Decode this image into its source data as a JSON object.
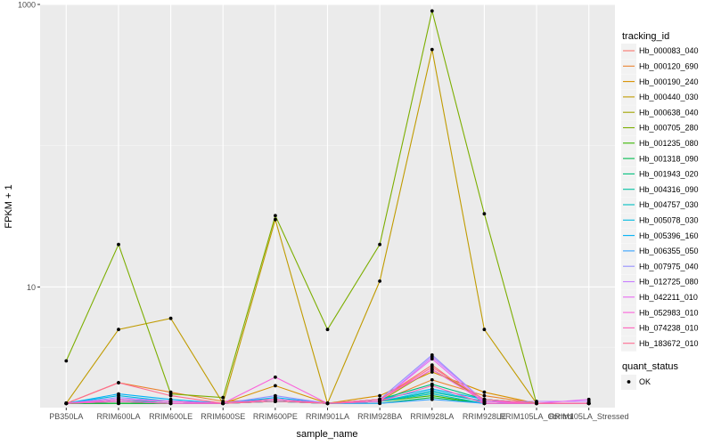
{
  "chart_data": {
    "type": "line",
    "title": "",
    "xlabel": "sample_name",
    "ylabel": "FPKM + 1",
    "y_scale": "log10",
    "ylim": [
      1.4,
      1000
    ],
    "y_ticks": [
      {
        "value": 1000,
        "label": "1000"
      },
      {
        "value": 10,
        "label": "10"
      }
    ],
    "categories": [
      "PB350LA",
      "RRIM600LA",
      "RRIM600LE",
      "RRIM600SE",
      "RRIM600PE",
      "RRIM901LA",
      "RRIM928BA",
      "RRIM928LA",
      "RRIM928LE",
      "RRIM105LA_Control",
      "RRIM105LA_Stressed"
    ],
    "legend": {
      "title": "tracking_id",
      "position": "right"
    },
    "point_legend": {
      "title": "quant_status",
      "entries": [
        "OK"
      ]
    },
    "series": [
      {
        "name": "Hb_000083_040",
        "color": "#F8766D",
        "values": [
          1.5,
          1.6,
          1.5,
          1.5,
          1.55,
          1.5,
          1.6,
          2.8,
          1.5,
          1.5,
          1.5
        ]
      },
      {
        "name": "Hb_000120_690",
        "color": "#EA8331",
        "values": [
          1.5,
          2.1,
          1.8,
          1.55,
          1.6,
          1.5,
          1.55,
          2.2,
          1.7,
          1.5,
          1.5
        ]
      },
      {
        "name": "Hb_000190_240",
        "color": "#D89000",
        "values": [
          1.5,
          1.5,
          1.5,
          1.5,
          2.0,
          1.5,
          1.7,
          2.5,
          1.8,
          1.5,
          1.5
        ]
      },
      {
        "name": "Hb_000440_030",
        "color": "#C09B00",
        "values": [
          1.5,
          5.0,
          6.0,
          1.5,
          30.0,
          1.5,
          11.0,
          480.0,
          5.0,
          1.5,
          1.5
        ]
      },
      {
        "name": "Hb_000638_040",
        "color": "#A3A500",
        "values": [
          1.5,
          1.5,
          1.5,
          1.5,
          1.6,
          1.5,
          1.55,
          2.6,
          1.6,
          1.5,
          1.5
        ]
      },
      {
        "name": "Hb_000705_280",
        "color": "#7CAE00",
        "values": [
          3.0,
          20.0,
          1.75,
          1.65,
          32.0,
          5.0,
          20.0,
          900.0,
          33.0,
          1.5,
          1.5
        ]
      },
      {
        "name": "Hb_001235_080",
        "color": "#39B600",
        "values": [
          1.5,
          1.5,
          1.5,
          1.5,
          1.55,
          1.5,
          1.55,
          1.7,
          1.5,
          1.5,
          1.5
        ]
      },
      {
        "name": "Hb_001318_090",
        "color": "#00BB4E",
        "values": [
          1.5,
          1.5,
          1.5,
          1.5,
          1.55,
          1.5,
          1.5,
          1.65,
          1.5,
          1.5,
          1.5
        ]
      },
      {
        "name": "Hb_001943_020",
        "color": "#00BF7D",
        "values": [
          1.5,
          1.6,
          1.55,
          1.5,
          1.6,
          1.5,
          1.6,
          2.05,
          1.6,
          1.5,
          1.5
        ]
      },
      {
        "name": "Hb_004316_090",
        "color": "#00C1A3",
        "values": [
          1.5,
          1.55,
          1.5,
          1.5,
          1.55,
          1.5,
          1.55,
          1.8,
          1.55,
          1.5,
          1.5
        ]
      },
      {
        "name": "Hb_004757_030",
        "color": "#00BFC4",
        "values": [
          1.5,
          1.6,
          1.5,
          1.5,
          1.55,
          1.5,
          1.55,
          1.75,
          1.5,
          1.5,
          1.5
        ]
      },
      {
        "name": "Hb_005078_030",
        "color": "#00BAE0",
        "values": [
          1.5,
          1.7,
          1.55,
          1.5,
          1.6,
          1.5,
          1.55,
          1.85,
          1.55,
          1.5,
          1.5
        ]
      },
      {
        "name": "Hb_005396_160",
        "color": "#00B0F6",
        "values": [
          1.5,
          1.75,
          1.6,
          1.5,
          1.65,
          1.5,
          1.6,
          1.9,
          1.6,
          1.5,
          1.5
        ]
      },
      {
        "name": "Hb_006355_050",
        "color": "#35A2FF",
        "values": [
          1.5,
          1.55,
          1.5,
          1.5,
          1.55,
          1.5,
          1.5,
          1.6,
          1.5,
          1.5,
          1.5
        ]
      },
      {
        "name": "Hb_007975_040",
        "color": "#9590FF",
        "values": [
          1.5,
          1.65,
          1.55,
          1.5,
          1.7,
          1.5,
          1.6,
          3.3,
          1.55,
          1.5,
          1.5
        ]
      },
      {
        "name": "Hb_012725_080",
        "color": "#C77CFF",
        "values": [
          1.5,
          1.6,
          1.55,
          1.5,
          1.6,
          1.5,
          1.55,
          3.2,
          1.55,
          1.55,
          1.55
        ]
      },
      {
        "name": "Hb_042211_010",
        "color": "#E76BF3",
        "values": [
          1.5,
          1.55,
          1.5,
          1.5,
          1.6,
          1.5,
          1.55,
          3.1,
          1.5,
          1.5,
          1.6
        ]
      },
      {
        "name": "Hb_052983_010",
        "color": "#FA62DB",
        "values": [
          1.5,
          1.6,
          1.55,
          1.5,
          2.3,
          1.5,
          1.6,
          2.6,
          1.55,
          1.5,
          1.5
        ]
      },
      {
        "name": "Hb_074238_010",
        "color": "#FF62BC",
        "values": [
          1.5,
          1.55,
          1.5,
          1.5,
          1.6,
          1.5,
          1.55,
          2.0,
          1.5,
          1.5,
          1.5
        ]
      },
      {
        "name": "Hb_183672_010",
        "color": "#FF6C91",
        "values": [
          1.5,
          2.1,
          1.7,
          1.5,
          1.55,
          1.5,
          1.6,
          2.7,
          1.6,
          1.5,
          1.5
        ]
      }
    ]
  }
}
